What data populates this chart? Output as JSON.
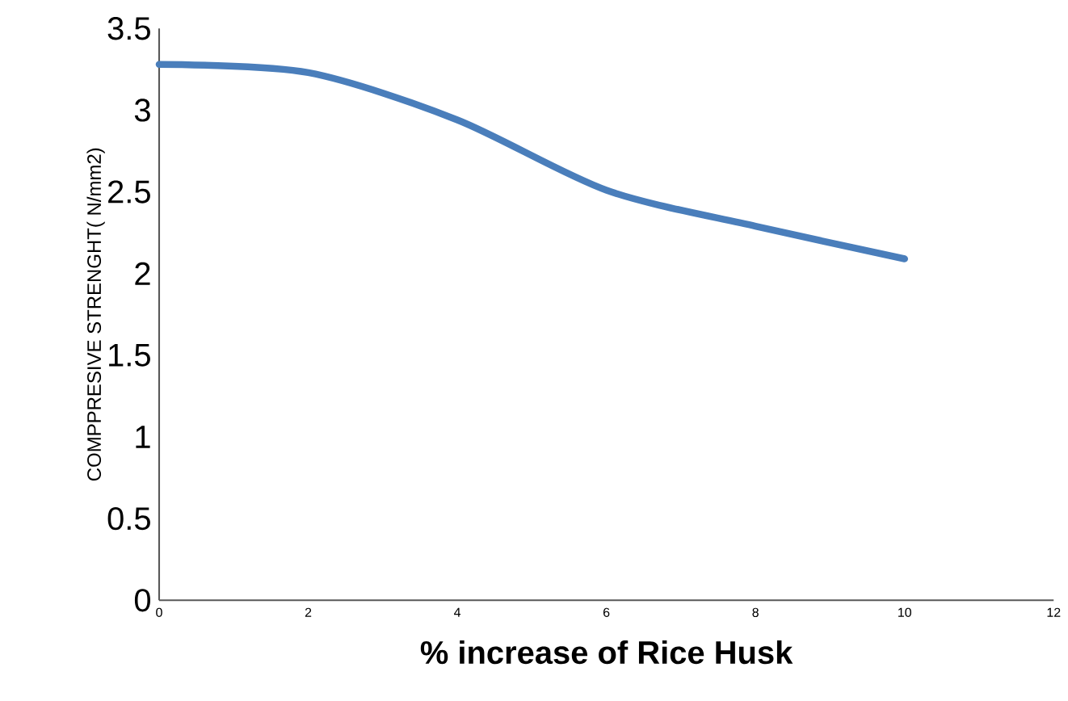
{
  "chart_data": {
    "type": "line",
    "xlabel": "% increase of Rice Husk",
    "ylabel": "COMPPRESIVE STRENGHT( N/mm2)",
    "x": [
      0,
      2,
      4,
      6,
      8,
      10
    ],
    "series": [
      {
        "color": "#4a7ebb",
        "values": [
          3.28,
          3.23,
          2.94,
          2.51,
          2.29,
          2.09
        ]
      }
    ],
    "xlim": [
      0,
      12
    ],
    "xticks": [
      0,
      2,
      4,
      6,
      8,
      10,
      12
    ],
    "ylim": [
      0,
      3.5
    ],
    "yticks": [
      0,
      0.5,
      1,
      1.5,
      2,
      2.5,
      3,
      3.5
    ],
    "grid": false,
    "marker": "none",
    "line_style": "solid"
  }
}
